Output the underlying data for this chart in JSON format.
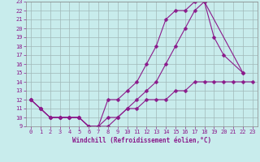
{
  "xlabel": "Windchill (Refroidissement éolien,°C)",
  "xlim": [
    -0.5,
    23.5
  ],
  "ylim": [
    9,
    23
  ],
  "xticks": [
    0,
    1,
    2,
    3,
    4,
    5,
    6,
    7,
    8,
    9,
    10,
    11,
    12,
    13,
    14,
    15,
    16,
    17,
    18,
    19,
    20,
    21,
    22,
    23
  ],
  "yticks": [
    9,
    10,
    11,
    12,
    13,
    14,
    15,
    16,
    17,
    18,
    19,
    20,
    21,
    22,
    23
  ],
  "bg_color": "#c8ecec",
  "line_color": "#8b1a8b",
  "grid_color": "#a0b8b8",
  "line1_x": [
    0,
    1,
    2,
    3,
    4,
    5,
    6,
    7,
    8,
    9,
    10,
    11,
    12,
    13,
    14,
    15,
    16,
    17,
    18,
    22
  ],
  "line1_y": [
    12,
    11,
    10,
    10,
    10,
    10,
    9,
    9,
    12,
    12,
    13,
    14,
    16,
    18,
    21,
    22,
    22,
    23,
    23,
    15
  ],
  "line2_x": [
    0,
    1,
    2,
    3,
    4,
    5,
    6,
    7,
    8,
    9,
    10,
    11,
    12,
    13,
    14,
    15,
    16,
    17,
    18,
    19,
    20,
    22
  ],
  "line2_y": [
    12,
    11,
    10,
    10,
    10,
    10,
    9,
    9,
    10,
    10,
    11,
    12,
    13,
    14,
    16,
    18,
    20,
    22,
    23,
    19,
    17,
    15
  ],
  "line3_x": [
    0,
    1,
    2,
    3,
    4,
    5,
    6,
    7,
    8,
    9,
    10,
    11,
    12,
    13,
    14,
    15,
    16,
    17,
    18,
    19,
    20,
    21,
    22,
    23
  ],
  "line3_y": [
    12,
    11,
    10,
    10,
    10,
    10,
    9,
    9,
    9,
    10,
    11,
    11,
    12,
    12,
    12,
    13,
    13,
    14,
    14,
    14,
    14,
    14,
    14,
    14
  ]
}
